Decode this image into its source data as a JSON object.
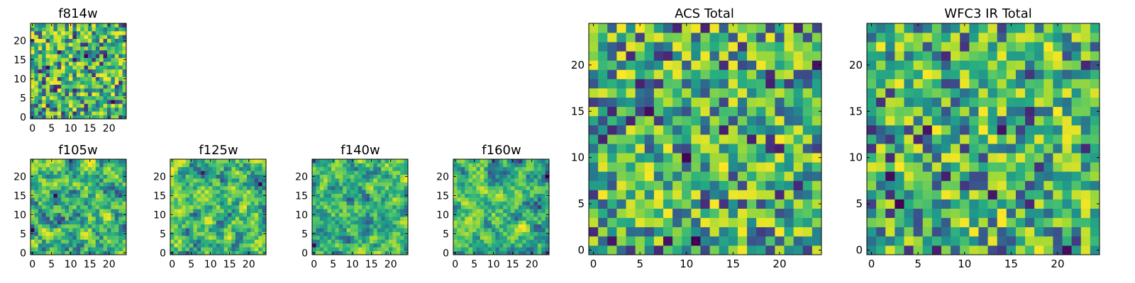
{
  "figure": {
    "colormap": "viridis",
    "grid_size": 25,
    "background": "#ffffff"
  },
  "chart_data": [
    {
      "id": "f814w",
      "type": "heatmap",
      "title": "f814w",
      "xlim": [
        0,
        25
      ],
      "ylim": [
        0,
        25
      ],
      "xticks": [
        0,
        5,
        10,
        15,
        20
      ],
      "yticks": [
        0,
        5,
        10,
        15,
        20
      ],
      "seed": 11,
      "smooth": 0,
      "noise": "pixel"
    },
    {
      "id": "f105w",
      "type": "heatmap",
      "title": "f105w",
      "xlim": [
        0,
        25
      ],
      "ylim": [
        0,
        25
      ],
      "xticks": [
        0,
        5,
        10,
        15,
        20
      ],
      "yticks": [
        0,
        5,
        10,
        15,
        20
      ],
      "seed": 23,
      "smooth": 1,
      "noise": "smoothed"
    },
    {
      "id": "f125w",
      "type": "heatmap",
      "title": "f125w",
      "xlim": [
        0,
        25
      ],
      "ylim": [
        0,
        25
      ],
      "xticks": [
        0,
        5,
        10,
        15,
        20
      ],
      "yticks": [
        0,
        5,
        10,
        15,
        20
      ],
      "seed": 37,
      "smooth": 1,
      "noise": "smoothed"
    },
    {
      "id": "f140w",
      "type": "heatmap",
      "title": "f140w",
      "xlim": [
        0,
        25
      ],
      "ylim": [
        0,
        25
      ],
      "xticks": [
        0,
        5,
        10,
        15,
        20
      ],
      "yticks": [
        0,
        5,
        10,
        15,
        20
      ],
      "seed": 41,
      "smooth": 1,
      "noise": "smoothed"
    },
    {
      "id": "f160w",
      "type": "heatmap",
      "title": "f160w",
      "xlim": [
        0,
        25
      ],
      "ylim": [
        0,
        25
      ],
      "xticks": [
        0,
        5,
        10,
        15,
        20
      ],
      "yticks": [
        0,
        5,
        10,
        15,
        20
      ],
      "seed": 53,
      "smooth": 1,
      "noise": "smoothed"
    },
    {
      "id": "acs-total",
      "type": "heatmap",
      "title": "ACS Total",
      "xlim": [
        0,
        25
      ],
      "ylim": [
        0,
        25
      ],
      "xticks": [
        0,
        5,
        10,
        15,
        20
      ],
      "yticks": [
        0,
        5,
        10,
        15,
        20
      ],
      "seed": 67,
      "smooth": 0,
      "noise": "pixel"
    },
    {
      "id": "wfc3-ir-total",
      "type": "heatmap",
      "title": "WFC3 IR Total",
      "xlim": [
        0,
        25
      ],
      "ylim": [
        0,
        25
      ],
      "xticks": [
        0,
        5,
        10,
        15,
        20
      ],
      "yticks": [
        0,
        5,
        10,
        15,
        20
      ],
      "seed": 79,
      "smooth": 0,
      "noise": "pixel"
    }
  ]
}
